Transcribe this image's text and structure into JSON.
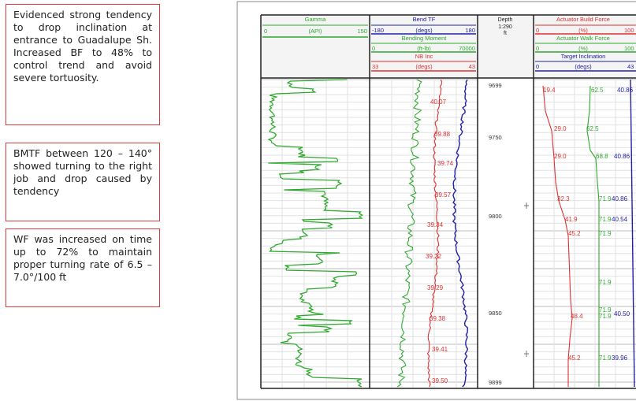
{
  "notes": [
    "Evidenced strong tendency to drop inclination at entrance to Guadalupe Sh. Increased BF to 48% to control trend and avoid severe tortuosity.",
    "BMTF between 120 – 140° showed turning to the right job and drop caused by tendency",
    "WF was increased on time up to 72% to maintain proper turning rate of 6.5 – 7.0°/100 ft"
  ],
  "track1": {
    "header": "Gamma",
    "unit": "(API)",
    "min": "0",
    "max": "150",
    "color": "#2ea82e"
  },
  "track2": {
    "curves": [
      {
        "name": "Bend TF",
        "unit": "(degs)",
        "min": "-180",
        "max": "180",
        "color": "#2020a8"
      },
      {
        "name": "Bending Moment",
        "unit": "(ft-lb)",
        "min": "0",
        "max": "70000",
        "color": "#2ea82e"
      },
      {
        "name": "NB Inc",
        "unit": "(degs)",
        "min": "33",
        "max": "43",
        "color": "#e03030"
      }
    ],
    "inc_labels": [
      "40.07",
      "39.88",
      "39.74",
      "39.57",
      "39.34",
      "39.22",
      "39.29",
      "39.38",
      "39.41",
      "39.50"
    ]
  },
  "depth": {
    "title": "Depth",
    "scale": "1:290",
    "unit": "ft",
    "ticks": [
      "9699",
      "9750",
      "9800",
      "9850",
      "9899"
    ]
  },
  "track4": {
    "curves": [
      {
        "name": "Actuator Build Force",
        "unit": "(%)",
        "min": "0",
        "max": "100",
        "color": "#e03030"
      },
      {
        "name": "Actuator Walk Force",
        "unit": "(%)",
        "min": "0",
        "max": "100",
        "color": "#2ea82e"
      },
      {
        "name": "Target Inclination",
        "unit": "(degs)",
        "min": "0",
        "max": "43",
        "color": "#2020a8"
      }
    ],
    "build_labels": [
      "19.4",
      "29.0",
      "29.0",
      "32.3",
      "41.9",
      "45.2",
      "48.4",
      "45.2"
    ],
    "walk_labels": [
      "62.5",
      "62.5",
      "68.8",
      "71.9",
      "71.9",
      "71.9",
      "71.9",
      "71.9",
      "71.9",
      "71.9"
    ],
    "target_labels": [
      "40.86",
      "40.86",
      "40.86",
      "40.54",
      "40.50",
      "39.96"
    ]
  }
}
